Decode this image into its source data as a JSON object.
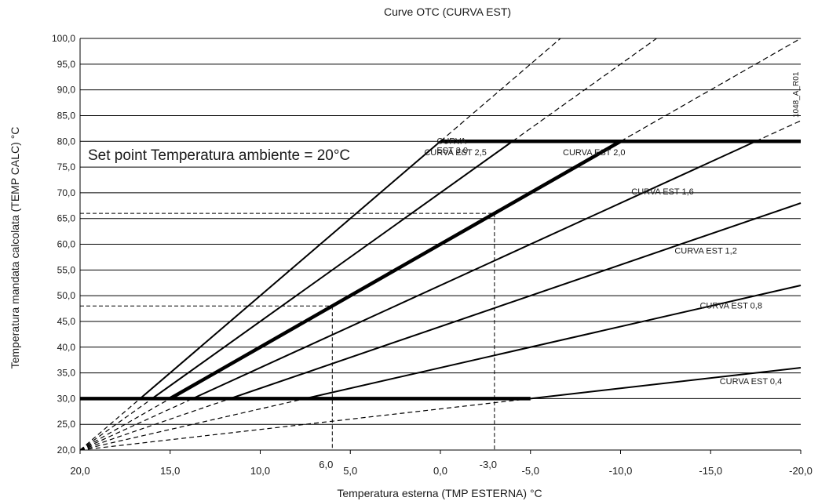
{
  "chart_data": {
    "type": "line",
    "title": "Curve OTC (CURVA EST)",
    "xlabel": "Temperatura esterna (TMP ESTERNA) °C",
    "ylabel": "Temperatura mandata calcolata (TEMP CALC) °C",
    "xlim": [
      20,
      -20
    ],
    "ylim": [
      20,
      100
    ],
    "x_ticks": [
      "20,0",
      "15,0",
      "10,0",
      "5,0",
      "0,0",
      "-5,0",
      "-10,0",
      "-15,0",
      "-20,0"
    ],
    "y_ticks": [
      "20,0",
      "25,0",
      "30,0",
      "35,0",
      "40,0",
      "45,0",
      "50,0",
      "55,0",
      "60,0",
      "65,0",
      "70,0",
      "75,0",
      "80,0",
      "85,0",
      "90,0",
      "95,0",
      "100,0"
    ],
    "grid": "horizontal",
    "annotation": "Set point Temperatura ambiente = 20°C",
    "watermark": "1048_A_R01",
    "min_temp": 30,
    "max_temp": 80,
    "series": [
      {
        "name": "CURVA EST 0,4",
        "slope": 0.4,
        "label_lines": [
          "CURVA EST 0,4"
        ]
      },
      {
        "name": "CURVA EST 0,8",
        "slope": 0.8,
        "label_lines": [
          "CURVA EST 0,8"
        ]
      },
      {
        "name": "CURVA EST 1,2",
        "slope": 1.2,
        "label_lines": [
          "CURVA EST 1,2"
        ]
      },
      {
        "name": "CURVA EST 1,6",
        "slope": 1.6,
        "label_lines": [
          "CURVA EST 1,6"
        ]
      },
      {
        "name": "CURVA EST 2,0",
        "slope": 2.0,
        "label_lines": [
          "CURVA EST 2,0"
        ],
        "bold": true
      },
      {
        "name": "CURVA EST 2,5",
        "slope": 2.5,
        "label_lines": [
          "CURVA EST 2,5"
        ]
      },
      {
        "name": "CURVA EST 3,0",
        "slope": 3.0,
        "label_lines": [
          "CURVA",
          "EST 3,0"
        ]
      }
    ],
    "reference_points": [
      {
        "x": 6.0,
        "y": 48.0,
        "x_label": "6,0"
      },
      {
        "x": -3.0,
        "y": 66.0,
        "x_label": "-3,0"
      }
    ]
  }
}
